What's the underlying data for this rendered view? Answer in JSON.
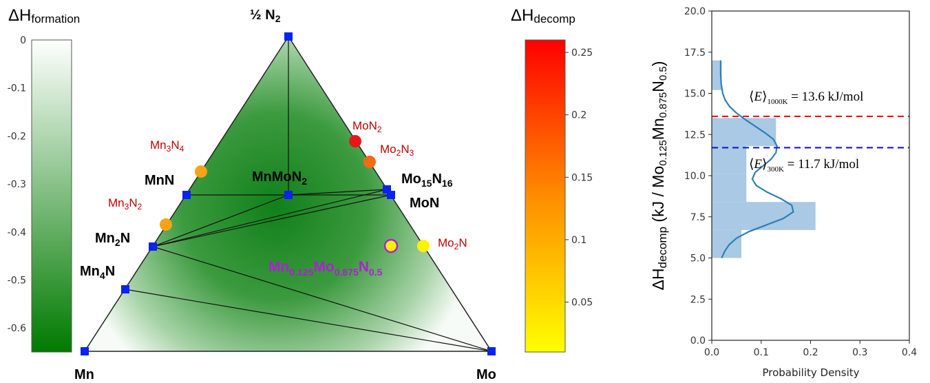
{
  "chart_data": [
    {
      "type": "ternary_phase_diagram",
      "vertices": {
        "top": "½ N₂",
        "left": "Mn",
        "right": "Mo"
      },
      "formation_colorbar": {
        "title_main": "ΔH",
        "title_sub": "formation",
        "ticks": [
          "0",
          "-0.1",
          "-0.2",
          "-0.3",
          "-0.4",
          "-0.5",
          "-0.6"
        ],
        "range": [
          -0.65,
          0
        ],
        "color_top": "#ffffff",
        "color_bottom": "#007a00"
      },
      "decomp_colorbar": {
        "title_main": "ΔH",
        "title_sub": "decomp",
        "ticks": [
          "0.25",
          "0.2",
          "0.15",
          "0.1",
          "0.05"
        ],
        "range": [
          0.01,
          0.26
        ],
        "color_top": "#ff0000",
        "color_bottom": "#ffff00"
      },
      "stable_phases": [
        {
          "name": "N2",
          "base": "½ N",
          "sub": "2"
        },
        {
          "name": "MnN",
          "base": "MnN",
          "sub": ""
        },
        {
          "name": "MnMoN2",
          "base": "MnMoN",
          "sub": "2"
        },
        {
          "name": "Mo15N16",
          "base": "Mo",
          "sub": "15",
          "base2": "N",
          "sub2": "16"
        },
        {
          "name": "MoN",
          "base": "MoN",
          "sub": ""
        },
        {
          "name": "Mn2N",
          "base": "Mn",
          "sub": "2",
          "base2": "N",
          "sub2": ""
        },
        {
          "name": "Mn4N",
          "base": "Mn",
          "sub": "4",
          "base2": "N",
          "sub2": ""
        },
        {
          "name": "Mn",
          "base": "Mn",
          "sub": ""
        },
        {
          "name": "Mo",
          "base": "Mo",
          "sub": ""
        }
      ],
      "unstable_phases": [
        {
          "name": "MoN2",
          "base": "MoN",
          "sub": "2",
          "base2": "",
          "sub2": "",
          "decomp": 0.215,
          "color": "#e8161a"
        },
        {
          "name": "Mo2N3",
          "base": "Mo",
          "sub": "2",
          "base2": "N",
          "sub2": "3",
          "decomp": 0.175,
          "color": "#f36b12"
        },
        {
          "name": "Mn3N4",
          "base": "Mn",
          "sub": "3",
          "base2": "N",
          "sub2": "4",
          "decomp": 0.13,
          "color": "#f8a316"
        },
        {
          "name": "Mn3N2",
          "base": "Mn",
          "sub": "3",
          "base2": "N",
          "sub2": "2",
          "decomp": 0.13,
          "color": "#f8a316"
        },
        {
          "name": "Mo2N",
          "base": "Mo",
          "sub": "2",
          "base2": "N",
          "sub2": "",
          "decomp": 0.02,
          "color": "#fff200"
        }
      ],
      "target": {
        "name": "Mn0.125Mo0.875N0.5",
        "parts": [
          {
            "base": "Mn",
            "sub": "0.125"
          },
          {
            "base": "Mo",
            "sub": "0.875"
          },
          {
            "base": "N",
            "sub": "0.5"
          }
        ],
        "color": "#fff200",
        "edge_color": "#b01fd6"
      }
    },
    {
      "type": "histogram_with_kde",
      "ylabel_main": "ΔH",
      "ylabel_sub": "decomp",
      "ylabel_rest_1": " (kJ / Mo",
      "ylabel_sub2": "0.125",
      "ylabel_rest_2": "Mn",
      "ylabel_sub3": "0.875",
      "ylabel_rest_3": "N",
      "ylabel_sub4": "0.5",
      "ylabel_rest_4": ")",
      "xlabel": "Probability Density",
      "xlim": [
        0.0,
        0.4
      ],
      "ylim": [
        0.0,
        20.0
      ],
      "xticks": [
        "0.0",
        "0.1",
        "0.2",
        "0.3",
        "0.4"
      ],
      "yticks": [
        "0.0",
        "2.5",
        "5.0",
        "7.5",
        "10.0",
        "12.5",
        "15.0",
        "17.5",
        "20.0"
      ],
      "bins": [
        {
          "y0": 5.0,
          "y1": 6.7,
          "density": 0.06
        },
        {
          "y0": 6.7,
          "y1": 8.4,
          "density": 0.21
        },
        {
          "y0": 8.4,
          "y1": 10.1,
          "density": 0.07
        },
        {
          "y0": 10.1,
          "y1": 11.8,
          "density": 0.07
        },
        {
          "y0": 11.8,
          "y1": 13.5,
          "density": 0.13
        },
        {
          "y0": 13.5,
          "y1": 15.2,
          "density": 0.0
        },
        {
          "y0": 15.2,
          "y1": 17.0,
          "density": 0.02
        }
      ],
      "kde": [
        {
          "y": 5.0,
          "d": 0.02
        },
        {
          "y": 5.4,
          "d": 0.026
        },
        {
          "y": 5.8,
          "d": 0.035
        },
        {
          "y": 6.2,
          "d": 0.05
        },
        {
          "y": 6.6,
          "d": 0.075
        },
        {
          "y": 7.0,
          "d": 0.11
        },
        {
          "y": 7.4,
          "d": 0.145
        },
        {
          "y": 7.8,
          "d": 0.165
        },
        {
          "y": 8.2,
          "d": 0.162
        },
        {
          "y": 8.6,
          "d": 0.14
        },
        {
          "y": 9.0,
          "d": 0.112
        },
        {
          "y": 9.4,
          "d": 0.09
        },
        {
          "y": 9.8,
          "d": 0.082
        },
        {
          "y": 10.2,
          "d": 0.088
        },
        {
          "y": 10.6,
          "d": 0.104
        },
        {
          "y": 11.0,
          "d": 0.12
        },
        {
          "y": 11.4,
          "d": 0.13
        },
        {
          "y": 11.8,
          "d": 0.132
        },
        {
          "y": 12.2,
          "d": 0.125
        },
        {
          "y": 12.6,
          "d": 0.108
        },
        {
          "y": 13.0,
          "d": 0.088
        },
        {
          "y": 13.4,
          "d": 0.068
        },
        {
          "y": 13.8,
          "d": 0.05
        },
        {
          "y": 14.2,
          "d": 0.036
        },
        {
          "y": 14.6,
          "d": 0.027
        },
        {
          "y": 15.0,
          "d": 0.022
        },
        {
          "y": 15.6,
          "d": 0.019
        },
        {
          "y": 16.2,
          "d": 0.018
        },
        {
          "y": 17.0,
          "d": 0.018
        }
      ],
      "hlines": [
        {
          "y": 13.6,
          "color": "#e8161a",
          "label_E": "E",
          "label_sub": "1000K",
          "label_rest": " = 13.6 kJ/mol"
        },
        {
          "y": 11.7,
          "color": "#1f1fdd",
          "label_E": "E",
          "label_sub": "300K",
          "label_rest": " = 11.7 kJ/mol"
        }
      ],
      "bar_color": "#a9c9e4",
      "kde_color": "#2d7fb8",
      "grid": false
    }
  ]
}
